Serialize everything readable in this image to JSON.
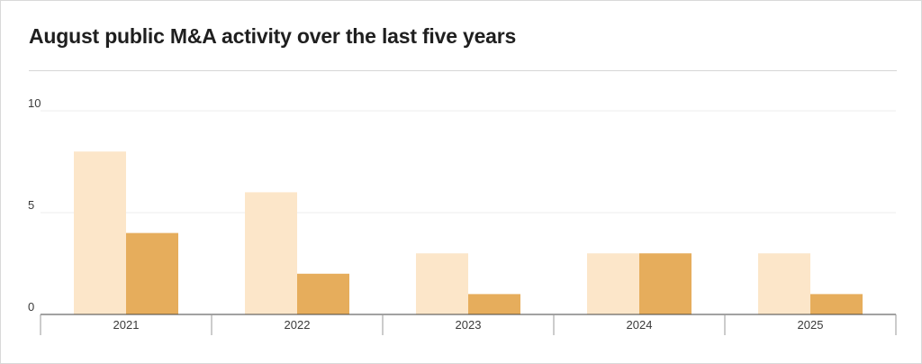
{
  "chart_data": {
    "type": "bar",
    "title": "August public M&A activity over the last five years",
    "xlabel": "",
    "ylabel": "",
    "categories": [
      "2021",
      "2022",
      "2023",
      "2024",
      "2025"
    ],
    "series": [
      {
        "values": [
          8,
          6,
          3,
          3,
          3
        ]
      },
      {
        "values": [
          4,
          2,
          1,
          3,
          1
        ]
      }
    ],
    "ylim": [
      0,
      10
    ],
    "yticks": [
      0,
      5,
      10
    ],
    "grid": true,
    "legend": "none",
    "colors": [
      "#fce6c9",
      "#e6ad5c"
    ]
  }
}
